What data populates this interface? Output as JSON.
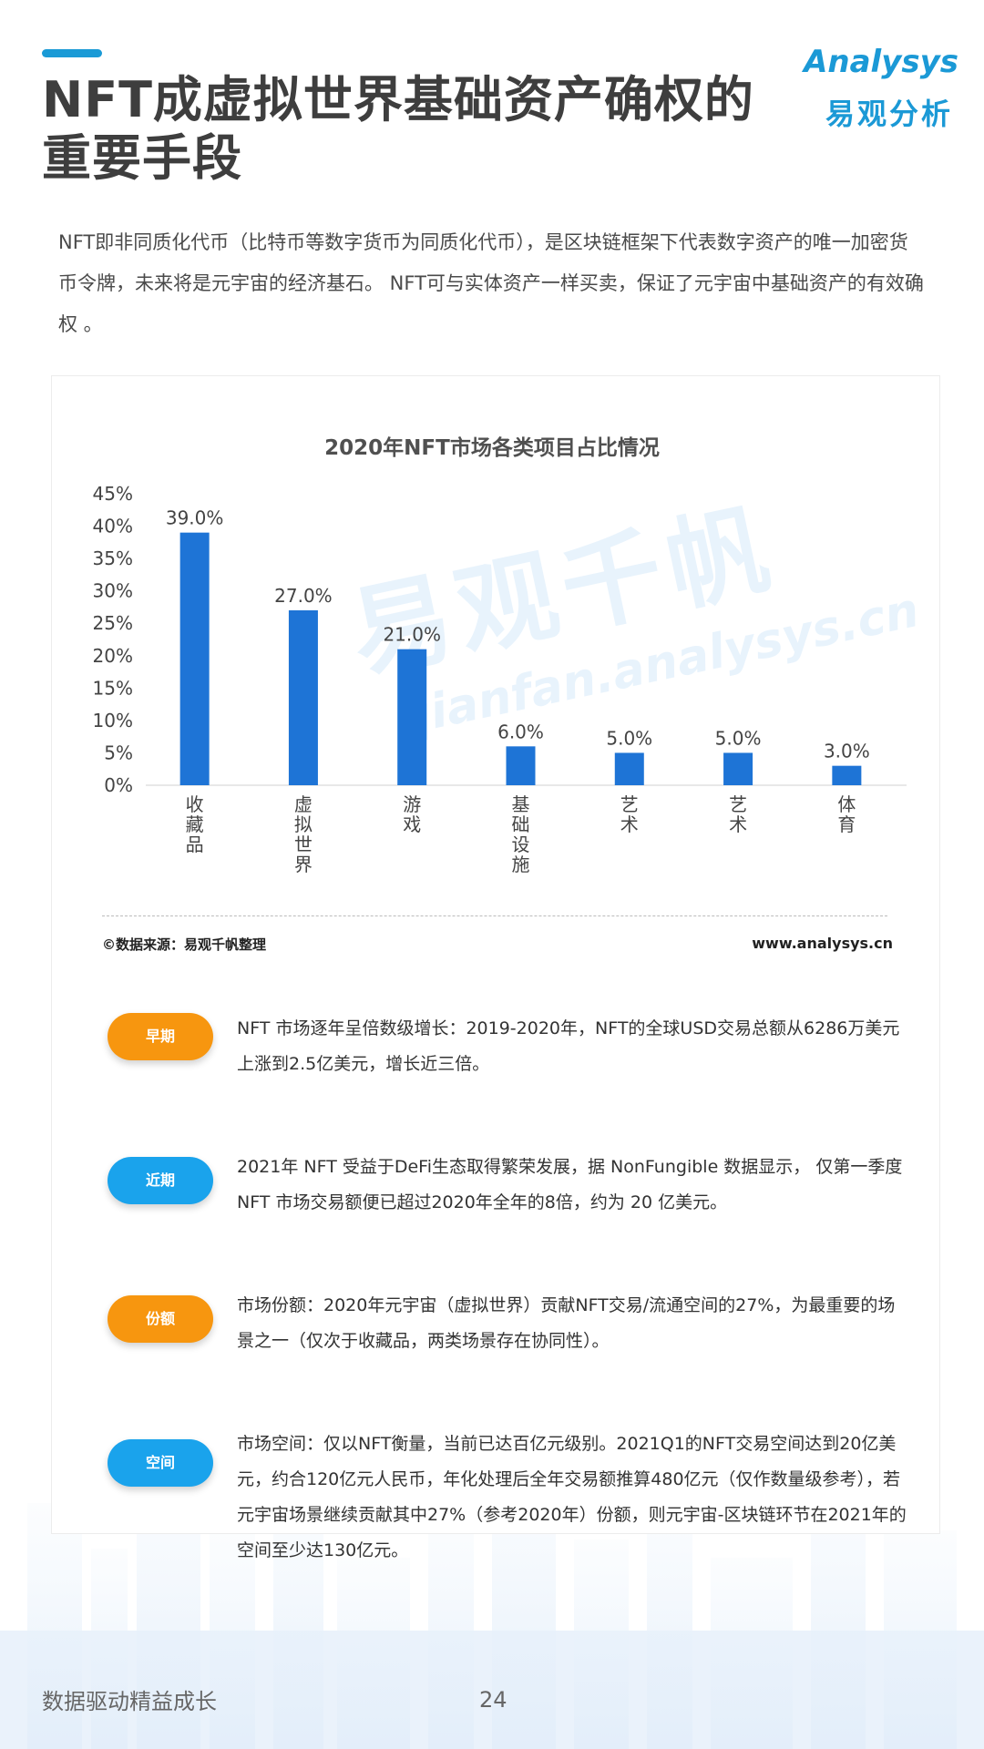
{
  "header": {
    "title": "NFT成虚拟世界基础资产确权的重要手段",
    "logo_en": "Analysys",
    "logo_cn": "易观分析"
  },
  "intro": "NFT即非同质化代币（比特币等数字货币为同质化代币），是区块链框架下代表数字资产的唯一加密货币令牌，未来将是元宇宙的经济基石。 NFT可与实体资产一样买卖，保证了元宇宙中基础资产的有效确权 。",
  "watermark": {
    "cn": "易观千帆",
    "url": "qianfan.analysys.cn"
  },
  "chart_data": {
    "type": "bar",
    "title": "2020年NFT市场各类项目占比情况",
    "categories": [
      "收藏品",
      "虚拟世界",
      "游戏",
      "基础设施",
      "艺术",
      "艺术",
      "体育"
    ],
    "values": [
      39.0,
      27.0,
      21.0,
      6.0,
      5.0,
      5.0,
      3.0
    ],
    "value_labels": [
      "39.0%",
      "27.0%",
      "21.0%",
      "6.0%",
      "5.0%",
      "5.0%",
      "3.0%"
    ],
    "yticks": [
      "0%",
      "5%",
      "10%",
      "15%",
      "20%",
      "25%",
      "30%",
      "35%",
      "40%",
      "45%"
    ],
    "ylim": [
      0,
      45
    ],
    "grid": false,
    "bar_color": "#1e74d6"
  },
  "source": {
    "left": "©数据来源：易观千帆整理",
    "right": "www.analysys.cn"
  },
  "notes": [
    {
      "badge": "早期",
      "color": "#f7960f",
      "text": "NFT 市场逐年呈倍数级增长：2019-2020年，NFT的全球USD交易总额从6286万美元上涨到2.5亿美元，增长近三倍。"
    },
    {
      "badge": "近期",
      "color": "#1aa3ec",
      "text": "2021年 NFT 受益于DeFi生态取得繁荣发展，据 NonFungible 数据显示， 仅第一季度 NFT 市场交易额便已超过2020年全年的8倍，约为 20 亿美元。"
    },
    {
      "badge": "份额",
      "color": "#f7960f",
      "text": "市场份额：2020年元宇宙（虚拟世界）贡献NFT交易/流通空间的27%，为最重要的场景之一（仅次于收藏品，两类场景存在协同性）。"
    },
    {
      "badge": "空间",
      "color": "#1aa3ec",
      "text": "市场空间：仅以NFT衡量，当前已达百亿元级别。2021Q1的NFT交易空间达到20亿美元，约合120亿元人民币，年化处理后全年交易额推算480亿元（仅作数量级参考），若元宇宙场景继续贡献其中27%（参考2020年）份额，则元宇宙-区块链环节在2021年的空间至少达130亿元。"
    }
  ],
  "footer": {
    "slogan": "数据驱动精益成长",
    "page": "24"
  }
}
